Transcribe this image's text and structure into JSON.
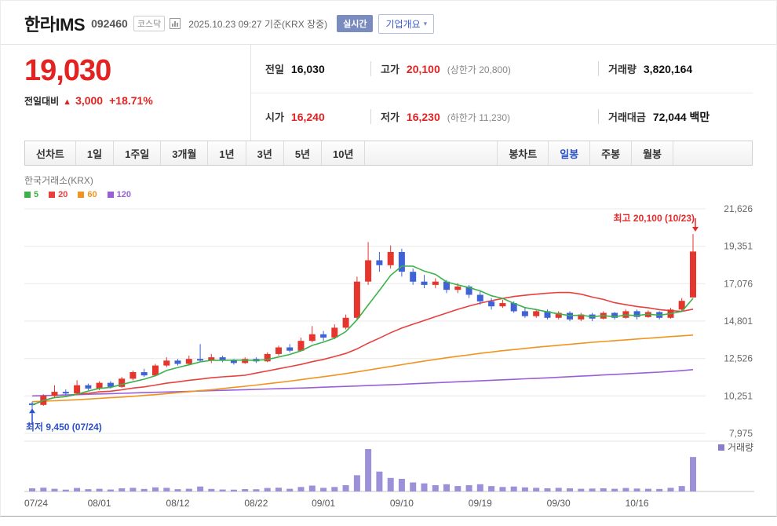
{
  "header": {
    "stock_name": "한라IMS",
    "stock_code": "092460",
    "market_badge": "코스닥",
    "datetime_label": "2025.10.23 09:27 기준(KRX 장중)",
    "realtime_badge": "실시간",
    "company_overview_button": "기업개요",
    "caret": "▾"
  },
  "price": {
    "current": "19,030",
    "change_label": "전일대비",
    "change_arrow": "▲",
    "change_value": "3,000",
    "change_percent": "+18.71%",
    "table": {
      "prev_close": {
        "label": "전일",
        "value": "16,030"
      },
      "high": {
        "label": "고가",
        "value": "20,100",
        "sub": "(상한가 20,800)"
      },
      "volume": {
        "label": "거래량",
        "value": "3,820,164"
      },
      "open": {
        "label": "시가",
        "value": "16,240"
      },
      "low": {
        "label": "저가",
        "value": "16,230",
        "sub": "(하한가 11,230)"
      },
      "trade_value": {
        "label": "거래대금",
        "value": "72,044 백만"
      }
    }
  },
  "tabs": {
    "line_group_label": "선차트",
    "line_tabs": [
      "1일",
      "1주일",
      "3개월",
      "1년",
      "3년",
      "5년",
      "10년"
    ],
    "candle_group_label": "봉차트",
    "candle_tabs": [
      "일봉",
      "주봉",
      "월봉"
    ],
    "selected_candle_tab": "일봉"
  },
  "chart": {
    "exchange_label": "한국거래소(KRX)",
    "legend": [
      {
        "label": "5",
        "color": "#3bb24a"
      },
      {
        "label": "20",
        "color": "#e8403d"
      },
      {
        "label": "60",
        "color": "#f0941f"
      },
      {
        "label": "120",
        "color": "#9a5fd6"
      }
    ],
    "high_annotation": "최고 20,100 (10/23)",
    "low_annotation": "최저 9,450 (07/24)",
    "volume_label": "거래량",
    "colors": {
      "up": "#e5352c",
      "down": "#3f62d7",
      "annotation_high": "#e42b2b",
      "annotation_low": "#2d50c8",
      "volume_bar": "#9c91d8",
      "volume_swatch": "#8a7cc9"
    }
  },
  "chart_data": {
    "type": "candlestick",
    "title": "한라IMS 일봉 차트",
    "ylim": [
      7975,
      21626
    ],
    "y_axis_ticks": [
      21626,
      19351,
      17076,
      14801,
      12526,
      10251,
      7975
    ],
    "x_ticks": [
      {
        "label": "07/24",
        "index": 0
      },
      {
        "label": "08/01",
        "index": 6
      },
      {
        "label": "08/12",
        "index": 13
      },
      {
        "label": "08/22",
        "index": 20
      },
      {
        "label": "09/01",
        "index": 26
      },
      {
        "label": "09/10",
        "index": 33
      },
      {
        "label": "09/19",
        "index": 40
      },
      {
        "label": "09/30",
        "index": 47
      },
      {
        "label": "10/16",
        "index": 54
      }
    ],
    "high_point": {
      "price": 20100,
      "date": "10/23"
    },
    "low_point": {
      "price": 9450,
      "date": "07/24"
    },
    "ma_periods": [
      5,
      20,
      60,
      120
    ],
    "dates": [
      "07/24",
      "07/25",
      "07/28",
      "07/29",
      "07/30",
      "07/31",
      "08/01",
      "08/04",
      "08/05",
      "08/06",
      "08/07",
      "08/08",
      "08/11",
      "08/12",
      "08/13",
      "08/14",
      "08/18",
      "08/19",
      "08/20",
      "08/21",
      "08/22",
      "08/25",
      "08/26",
      "08/27",
      "08/28",
      "08/29",
      "09/01",
      "09/02",
      "09/03",
      "09/04",
      "09/05",
      "09/08",
      "09/09",
      "09/10",
      "09/11",
      "09/12",
      "09/15",
      "09/16",
      "09/17",
      "09/18",
      "09/19",
      "09/22",
      "09/23",
      "09/24",
      "09/25",
      "09/26",
      "09/29",
      "09/30",
      "10/01",
      "10/02",
      "10/10",
      "10/13",
      "10/14",
      "10/15",
      "10/16",
      "10/17",
      "10/20",
      "10/21",
      "10/22",
      "10/23"
    ],
    "ohlc": [
      [
        9800,
        9900,
        9450,
        9700
      ],
      [
        9700,
        10350,
        9650,
        10250
      ],
      [
        10250,
        10900,
        10150,
        10500
      ],
      [
        10500,
        10650,
        10300,
        10400
      ],
      [
        10400,
        11200,
        10350,
        10900
      ],
      [
        10900,
        11000,
        10600,
        10700
      ],
      [
        10700,
        11150,
        10600,
        11050
      ],
      [
        11050,
        11150,
        10700,
        10800
      ],
      [
        10800,
        11400,
        10750,
        11300
      ],
      [
        11300,
        11800,
        11200,
        11700
      ],
      [
        11700,
        11900,
        11400,
        11500
      ],
      [
        11500,
        12200,
        11450,
        12100
      ],
      [
        12100,
        12600,
        12000,
        12400
      ],
      [
        12400,
        12500,
        12100,
        12200
      ],
      [
        12200,
        12700,
        12150,
        12500
      ],
      [
        12500,
        13400,
        12300,
        12400
      ],
      [
        12400,
        12800,
        12250,
        12600
      ],
      [
        12600,
        12700,
        12300,
        12400
      ],
      [
        12400,
        12500,
        12150,
        12250
      ],
      [
        12250,
        12600,
        12200,
        12500
      ],
      [
        12500,
        12600,
        12250,
        12350
      ],
      [
        12350,
        12900,
        12300,
        12800
      ],
      [
        12800,
        13300,
        12700,
        13200
      ],
      [
        13200,
        13400,
        12900,
        13000
      ],
      [
        13000,
        13800,
        12950,
        13600
      ],
      [
        13600,
        14500,
        13500,
        14000
      ],
      [
        14000,
        14200,
        13600,
        13800
      ],
      [
        13800,
        14600,
        13700,
        14400
      ],
      [
        14400,
        15200,
        14300,
        15000
      ],
      [
        15000,
        17500,
        14900,
        17200
      ],
      [
        17200,
        19600,
        17000,
        18500
      ],
      [
        18500,
        19000,
        17800,
        18200
      ],
      [
        18200,
        19400,
        18000,
        19000
      ],
      [
        19000,
        19200,
        17500,
        17800
      ],
      [
        17800,
        18000,
        17000,
        17200
      ],
      [
        17200,
        17600,
        16800,
        17000
      ],
      [
        17000,
        17400,
        16800,
        17200
      ],
      [
        17200,
        17300,
        16500,
        16700
      ],
      [
        16700,
        17100,
        16500,
        16900
      ],
      [
        16900,
        17000,
        16200,
        16400
      ],
      [
        16400,
        16600,
        15800,
        16000
      ],
      [
        16000,
        16200,
        15500,
        15700
      ],
      [
        15700,
        16100,
        15600,
        15900
      ],
      [
        15900,
        16000,
        15300,
        15400
      ],
      [
        15400,
        15600,
        15000,
        15100
      ],
      [
        15100,
        15500,
        15000,
        15400
      ],
      [
        15400,
        15500,
        14900,
        15000
      ],
      [
        15000,
        15400,
        14900,
        15300
      ],
      [
        15300,
        15400,
        14800,
        14900
      ],
      [
        14900,
        15300,
        14800,
        15200
      ],
      [
        15200,
        15300,
        14800,
        14950
      ],
      [
        14950,
        15400,
        14900,
        15300
      ],
      [
        15300,
        15350,
        14900,
        15000
      ],
      [
        15000,
        15500,
        14950,
        15400
      ],
      [
        15400,
        15500,
        14900,
        15050
      ],
      [
        15050,
        15450,
        15000,
        15350
      ],
      [
        15350,
        15400,
        14900,
        15000
      ],
      [
        15000,
        15600,
        14950,
        15500
      ],
      [
        15500,
        16200,
        15400,
        16030
      ],
      [
        16240,
        20100,
        16230,
        19030
      ]
    ],
    "volumes": [
      350000,
      420000,
      300000,
      200000,
      380000,
      250000,
      300000,
      220000,
      350000,
      400000,
      280000,
      450000,
      400000,
      250000,
      300000,
      550000,
      280000,
      220000,
      200000,
      260000,
      240000,
      380000,
      420000,
      300000,
      500000,
      650000,
      400000,
      500000,
      700000,
      1800000,
      4700000,
      2200000,
      1500000,
      1400000,
      1000000,
      900000,
      700000,
      800000,
      600000,
      700000,
      800000,
      600000,
      500000,
      550000,
      450000,
      400000,
      350000,
      400000,
      350000,
      300000,
      320000,
      350000,
      300000,
      380000,
      320000,
      300000,
      280000,
      400000,
      600000,
      3820164
    ],
    "ma60": [
      9900,
      9930,
      9960,
      9990,
      10020,
      10060,
      10100,
      10140,
      10180,
      10230,
      10280,
      10330,
      10390,
      10450,
      10510,
      10570,
      10630,
      10700,
      10770,
      10840,
      10910,
      10990,
      11070,
      11150,
      11240,
      11330,
      11420,
      11510,
      11610,
      11710,
      11820,
      11930,
      12040,
      12150,
      12260,
      12370,
      12470,
      12570,
      12660,
      12750,
      12840,
      12920,
      13000,
      13070,
      13140,
      13210,
      13270,
      13330,
      13390,
      13450,
      13510,
      13560,
      13610,
      13660,
      13710,
      13760,
      13810,
      13860,
      13905,
      13950
    ],
    "ma120": [
      10250,
      10270,
      10290,
      10310,
      10330,
      10350,
      10370,
      10390,
      10410,
      10430,
      10450,
      10470,
      10490,
      10510,
      10530,
      10550,
      10570,
      10590,
      10610,
      10630,
      10650,
      10670,
      10690,
      10710,
      10730,
      10755,
      10780,
      10805,
      10830,
      10855,
      10880,
      10905,
      10930,
      10960,
      10990,
      11020,
      11050,
      11080,
      11110,
      11140,
      11170,
      11200,
      11230,
      11260,
      11290,
      11320,
      11350,
      11385,
      11420,
      11455,
      11490,
      11525,
      11560,
      11595,
      11630,
      11665,
      11700,
      11740,
      11790,
      11850
    ]
  }
}
